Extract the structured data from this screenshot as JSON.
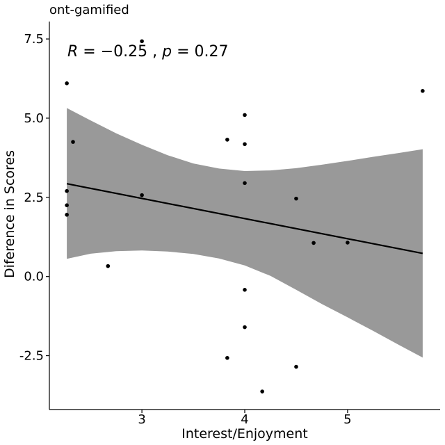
{
  "chart_data": {
    "type": "scatter",
    "title": "ont-gamified",
    "annotation": {
      "r_label": "R",
      "r_value": "= −0.25",
      "sep": " ,",
      "p_label": "p",
      "p_value": "= 0.27"
    },
    "xlabel": "Interest/Enjoyment",
    "ylabel": "Diference in Scores",
    "xlim": [
      2.1,
      5.9
    ],
    "ylim": [
      -4.2,
      8.05
    ],
    "x_ticks": [
      {
        "value": 3,
        "label": "3"
      },
      {
        "value": 4,
        "label": "4"
      },
      {
        "value": 5,
        "label": "5"
      }
    ],
    "y_ticks": [
      {
        "value": 7.5,
        "label": "7.5"
      },
      {
        "value": 5.0,
        "label": "5.0"
      },
      {
        "value": 2.5,
        "label": "2.5"
      },
      {
        "value": 0.0,
        "label": "0.0"
      },
      {
        "value": -2.5,
        "label": "-2.5"
      }
    ],
    "grid": false,
    "points": [
      {
        "x": 2.27,
        "y": 6.1
      },
      {
        "x": 2.33,
        "y": 4.25
      },
      {
        "x": 2.27,
        "y": 2.7
      },
      {
        "x": 2.27,
        "y": 2.25
      },
      {
        "x": 2.27,
        "y": 1.95
      },
      {
        "x": 2.67,
        "y": 0.33
      },
      {
        "x": 3.0,
        "y": 7.43
      },
      {
        "x": 3.0,
        "y": 2.57
      },
      {
        "x": 3.83,
        "y": 4.32
      },
      {
        "x": 3.83,
        "y": -2.57
      },
      {
        "x": 4.0,
        "y": 5.1
      },
      {
        "x": 4.0,
        "y": 4.18
      },
      {
        "x": 4.0,
        "y": 2.95
      },
      {
        "x": 4.0,
        "y": -0.42
      },
      {
        "x": 4.0,
        "y": -1.6
      },
      {
        "x": 4.17,
        "y": -3.63
      },
      {
        "x": 4.5,
        "y": 2.46
      },
      {
        "x": 4.5,
        "y": -2.85
      },
      {
        "x": 4.67,
        "y": 1.06
      },
      {
        "x": 5.0,
        "y": 1.07
      },
      {
        "x": 5.73,
        "y": 5.86
      }
    ],
    "regression": {
      "x": [
        2.27,
        5.73
      ],
      "y": [
        2.93,
        0.73
      ]
    },
    "confidence_band": {
      "x": [
        2.27,
        2.5,
        2.75,
        3.0,
        3.25,
        3.5,
        3.75,
        4.0,
        4.25,
        4.5,
        4.75,
        5.0,
        5.25,
        5.5,
        5.73
      ],
      "upper": [
        5.32,
        4.93,
        4.52,
        4.16,
        3.83,
        3.57,
        3.41,
        3.33,
        3.35,
        3.42,
        3.53,
        3.65,
        3.78,
        3.9,
        4.02
      ],
      "lower": [
        0.56,
        0.72,
        0.8,
        0.82,
        0.79,
        0.71,
        0.57,
        0.35,
        0.02,
        -0.42,
        -0.87,
        -1.29,
        -1.72,
        -2.16,
        -2.56
      ]
    },
    "colors": {
      "points": "#000000",
      "line": "#000000",
      "band": "#999999",
      "axis": "#000000"
    }
  }
}
